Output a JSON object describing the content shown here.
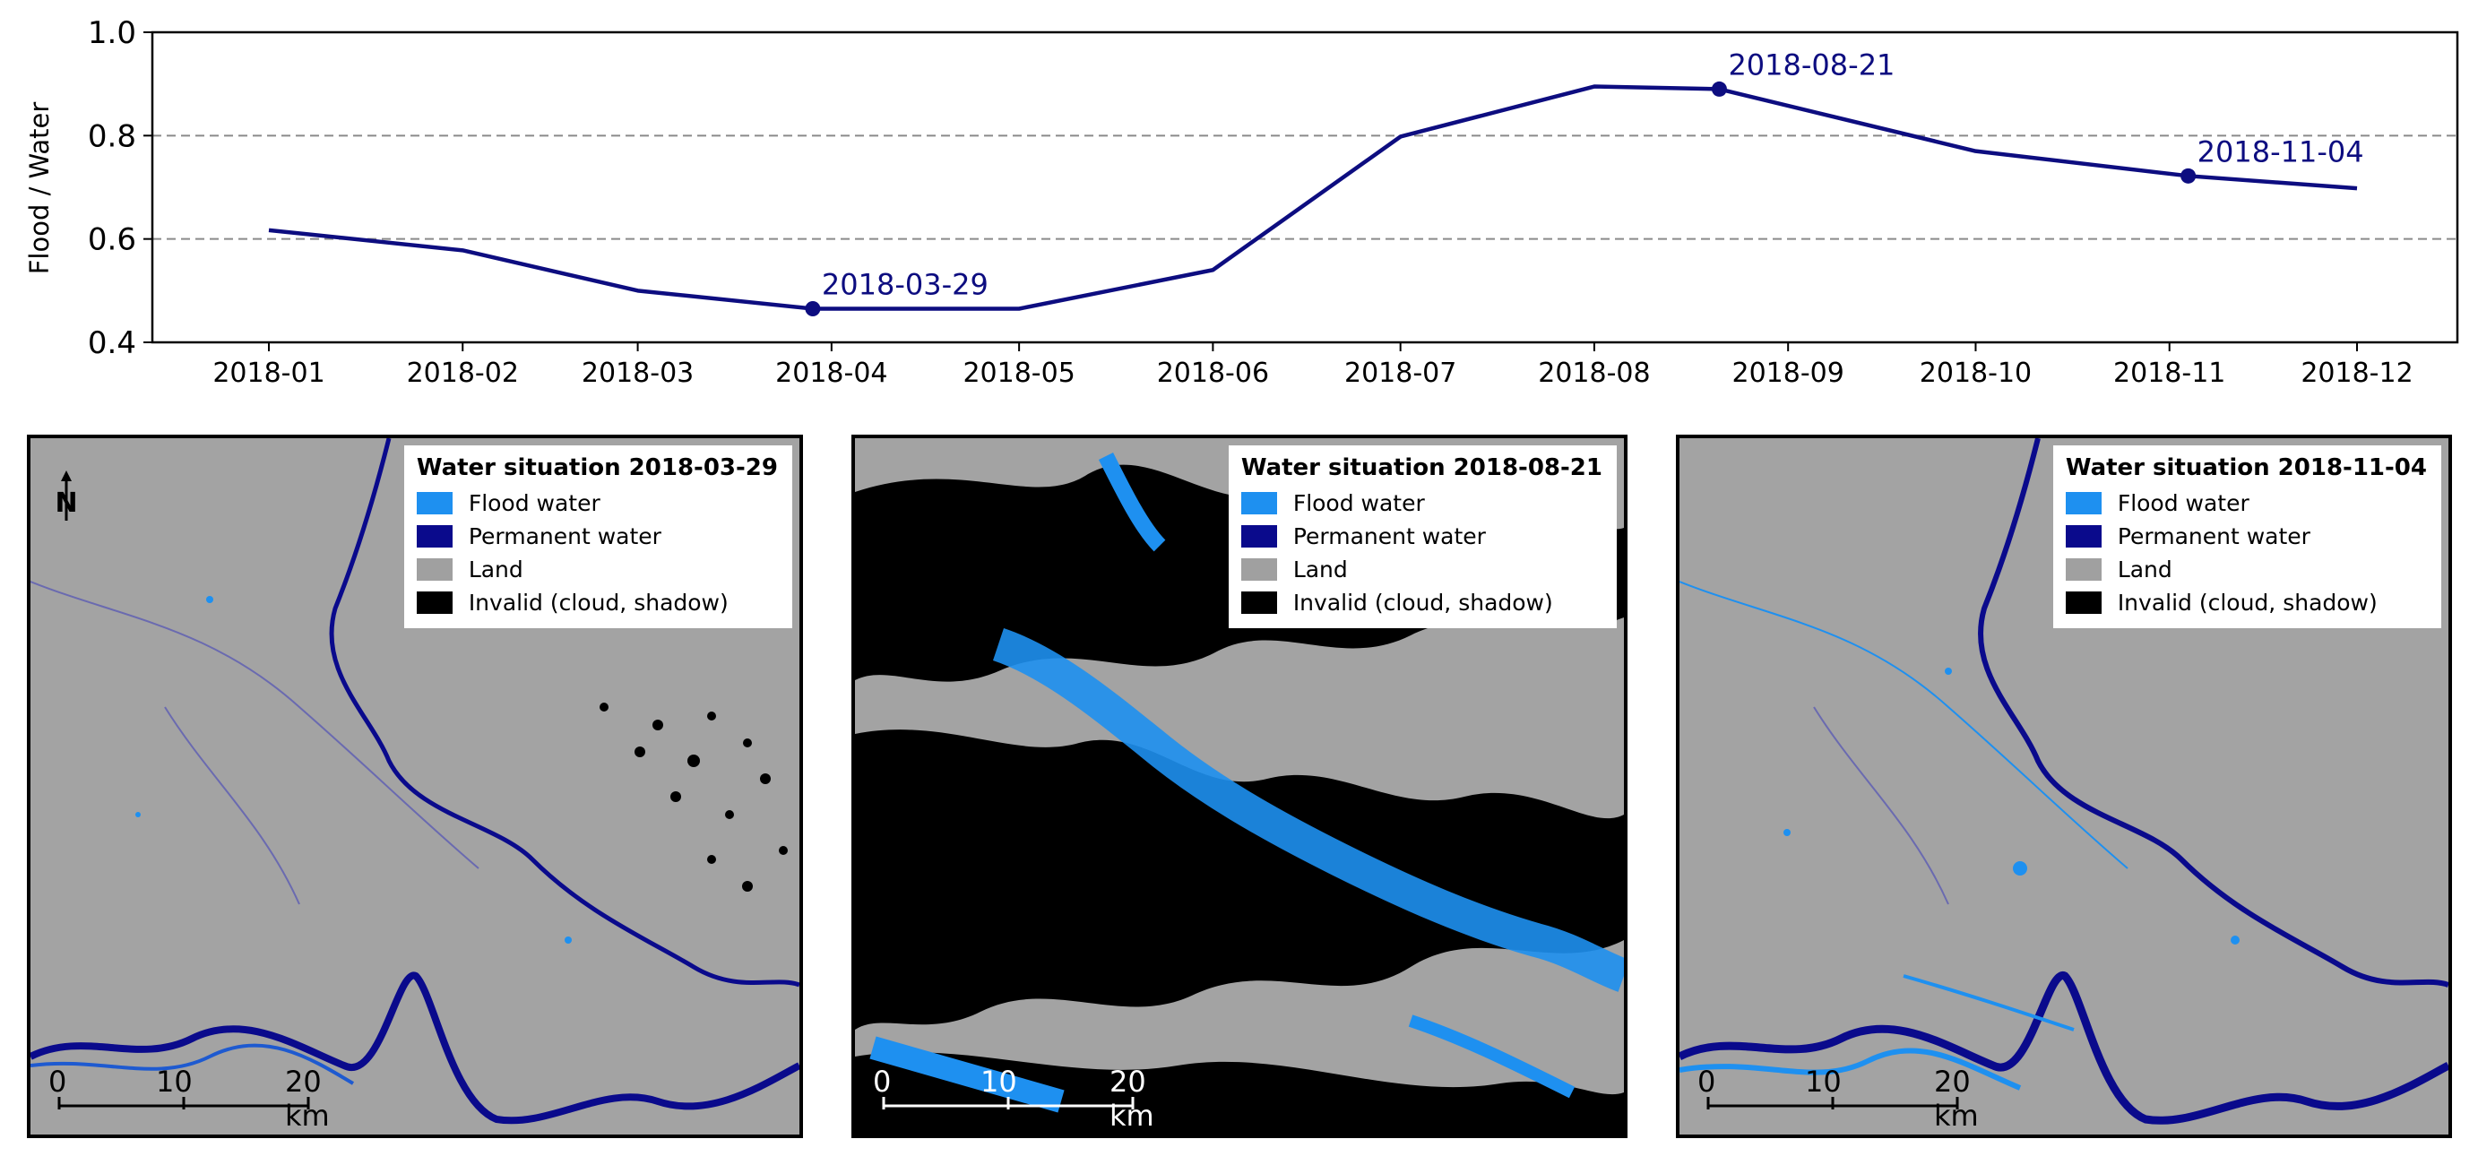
{
  "chart_data": {
    "type": "line",
    "ylabel": "Flood / Water",
    "xlabel": "",
    "title": "",
    "ylim": [
      0.4,
      1.0
    ],
    "yticks": [
      "0.4",
      "0.6",
      "0.8",
      "1.0"
    ],
    "grid_y": [
      0.6,
      0.8
    ],
    "grid_style": "dashed",
    "line_color": "#0d0d80",
    "categories": [
      "2018-01",
      "2018-02",
      "2018-03",
      "2018-04",
      "2018-05",
      "2018-06",
      "2018-07",
      "2018-08",
      "2018-09",
      "2018-10",
      "2018-11",
      "2018-12"
    ],
    "points": [
      {
        "x": "2018-01-01",
        "y": 0.617
      },
      {
        "x": "2018-02-01",
        "y": 0.578
      },
      {
        "x": "2018-03-01",
        "y": 0.5
      },
      {
        "x": "2018-03-29",
        "y": 0.465
      },
      {
        "x": "2018-05-01",
        "y": 0.465
      },
      {
        "x": "2018-06-01",
        "y": 0.54
      },
      {
        "x": "2018-07-01",
        "y": 0.798
      },
      {
        "x": "2018-08-01",
        "y": 0.895
      },
      {
        "x": "2018-08-21",
        "y": 0.89
      },
      {
        "x": "2018-10-01",
        "y": 0.77
      },
      {
        "x": "2018-11-04",
        "y": 0.722
      },
      {
        "x": "2018-12-01",
        "y": 0.698
      }
    ],
    "highlighted": [
      {
        "x": "2018-03-29",
        "y": 0.465,
        "label": "2018-03-29"
      },
      {
        "x": "2018-08-21",
        "y": 0.89,
        "label": "2018-08-21"
      },
      {
        "x": "2018-11-04",
        "y": 0.722,
        "label": "2018-11-04"
      }
    ]
  },
  "maps": [
    {
      "legend_title": "Water situation 2018-03-29",
      "show_north": true
    },
    {
      "legend_title": "Water situation 2018-08-21",
      "show_north": false
    },
    {
      "legend_title": "Water situation 2018-11-04",
      "show_north": false
    }
  ],
  "legend_items": [
    {
      "label": "Flood water",
      "color": "#1e90f0"
    },
    {
      "label": "Permanent water",
      "color": "#0a0a8c"
    },
    {
      "label": "Land",
      "color": "#a0a0a0"
    },
    {
      "label": "Invalid (cloud, shadow)",
      "color": "#000000"
    }
  ],
  "scale_bar": {
    "labels": [
      "0",
      "10",
      "20 km"
    ]
  },
  "colors": {
    "land": "#a3a3a3",
    "permanent": "#0a0a8c",
    "flood": "#1e90f0",
    "invalid": "#000000"
  }
}
